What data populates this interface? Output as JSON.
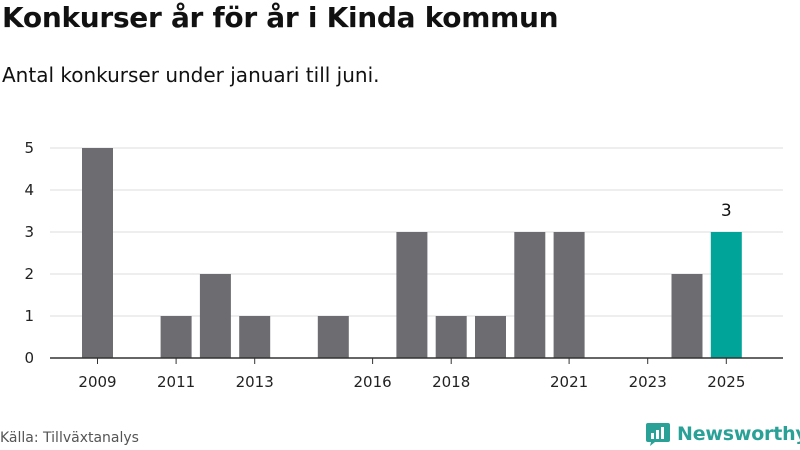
{
  "title": "Konkurser år för år i Kinda kommun",
  "subtitle": "Antal konkurser under januari till juni.",
  "source": "Källa: Tillväxtanalys",
  "brand": {
    "name": "Newsworthy",
    "icon": "newsworthy-logo-icon",
    "color": "#2aa197"
  },
  "colors": {
    "bar": "#6d6c71",
    "highlight": "#00a499",
    "grid": "#dddddd",
    "axis": "#333333"
  },
  "chart_data": {
    "type": "bar",
    "categories": [
      2009,
      2010,
      2011,
      2012,
      2013,
      2014,
      2015,
      2016,
      2017,
      2018,
      2019,
      2020,
      2021,
      2022,
      2023,
      2024,
      2025
    ],
    "values": [
      5,
      0,
      1,
      2,
      1,
      0,
      1,
      0,
      3,
      1,
      1,
      3,
      3,
      0,
      0,
      2,
      3
    ],
    "highlight_category": 2025,
    "data_labels": [
      {
        "category": 2025,
        "text": "3"
      }
    ],
    "xticks": [
      2009,
      2011,
      2013,
      2016,
      2018,
      2021,
      2023,
      2025
    ],
    "yticks": [
      0,
      1,
      2,
      3,
      4,
      5
    ],
    "ylim": [
      0,
      5
    ],
    "grid": "horizontal",
    "legend": "none"
  }
}
